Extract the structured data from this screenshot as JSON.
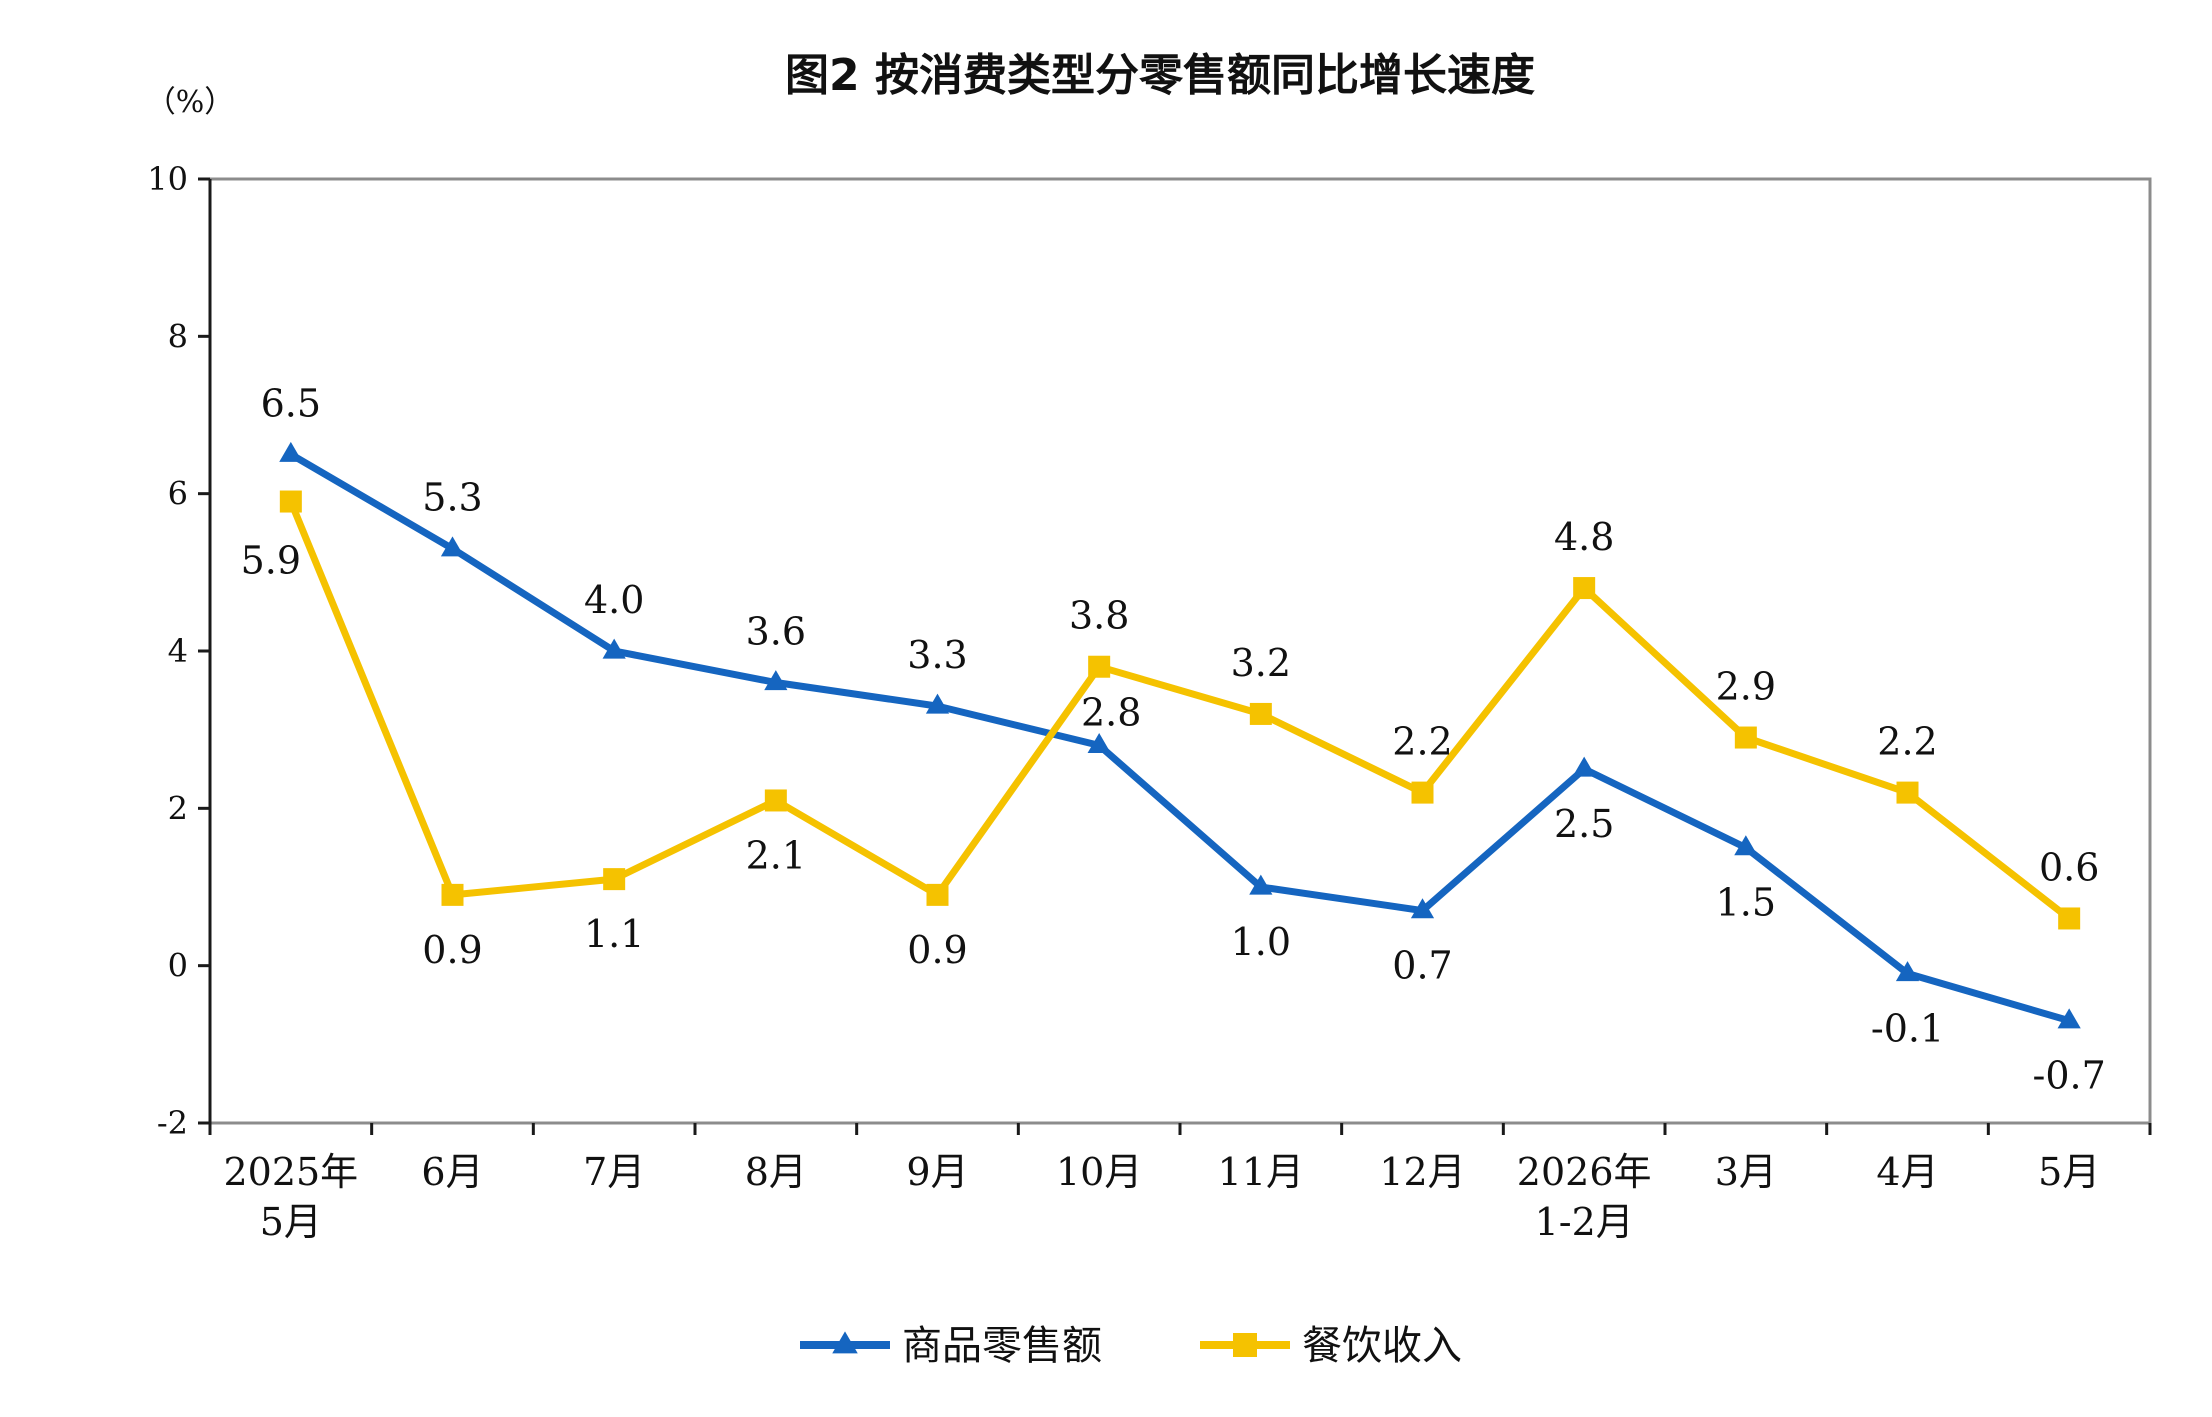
{
  "chart_data": {
    "type": "line",
    "title": "图2  按消费类型分零售额同比增长速度",
    "unit_label": "（%）",
    "categories": [
      [
        "2025年",
        "5月"
      ],
      [
        "6月"
      ],
      [
        "7月"
      ],
      [
        "8月"
      ],
      [
        "9月"
      ],
      [
        "10月"
      ],
      [
        "11月"
      ],
      [
        "12月"
      ],
      [
        "2026年",
        "1-2月"
      ],
      [
        "3月"
      ],
      [
        "4月"
      ],
      [
        "5月"
      ]
    ],
    "ylim": [
      -2,
      10
    ],
    "yticks": [
      -2,
      0,
      2,
      4,
      6,
      8,
      10
    ],
    "grid": false,
    "legend_position": "bottom",
    "series": [
      {
        "name": "商品零售额",
        "color": "#1565C0",
        "marker": "triangle",
        "values": [
          6.5,
          5.3,
          4.0,
          3.6,
          3.3,
          2.8,
          1.0,
          0.7,
          2.5,
          1.5,
          -0.1,
          -0.7
        ],
        "labels": [
          "6.5",
          "5.3",
          "4.0",
          "3.6",
          "3.3",
          "2.8",
          "1.0",
          "0.7",
          "2.5",
          "1.5",
          "-0.1",
          "-0.7"
        ]
      },
      {
        "name": "餐饮收入",
        "color": "#F5C200",
        "marker": "square",
        "values": [
          5.9,
          0.9,
          1.1,
          2.1,
          0.9,
          3.8,
          3.2,
          2.2,
          4.8,
          2.9,
          2.2,
          0.6
        ],
        "labels": [
          "5.9",
          "0.9",
          "1.1",
          "2.1",
          "0.9",
          "3.8",
          "3.2",
          "2.2",
          "4.8",
          "2.9",
          "2.2",
          "0.6"
        ]
      }
    ]
  }
}
